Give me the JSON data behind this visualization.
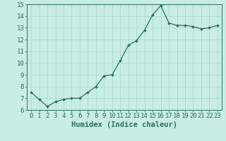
{
  "x": [
    0,
    1,
    2,
    3,
    4,
    5,
    6,
    7,
    8,
    9,
    10,
    11,
    12,
    13,
    14,
    15,
    16,
    17,
    18,
    19,
    20,
    21,
    22,
    23
  ],
  "y": [
    7.5,
    6.9,
    6.3,
    6.7,
    6.9,
    7.0,
    7.0,
    7.5,
    8.0,
    8.9,
    9.0,
    10.2,
    11.5,
    11.9,
    12.8,
    14.1,
    14.9,
    13.4,
    13.2,
    13.2,
    13.1,
    12.9,
    13.0,
    13.2
  ],
  "bg_color": "#c8ece6",
  "grid_color": "#b0d8d0",
  "line_color": "#2d6e5e",
  "marker_color": "#2d6e5e",
  "xlabel": "Humidex (Indice chaleur)",
  "xlim": [
    -0.5,
    23.5
  ],
  "ylim": [
    6,
    15
  ],
  "yticks": [
    6,
    7,
    8,
    9,
    10,
    11,
    12,
    13,
    14,
    15
  ],
  "xticks": [
    0,
    1,
    2,
    3,
    4,
    5,
    6,
    7,
    8,
    9,
    10,
    11,
    12,
    13,
    14,
    15,
    16,
    17,
    18,
    19,
    20,
    21,
    22,
    23
  ],
  "xlabel_fontsize": 7.5,
  "tick_fontsize": 6.5
}
